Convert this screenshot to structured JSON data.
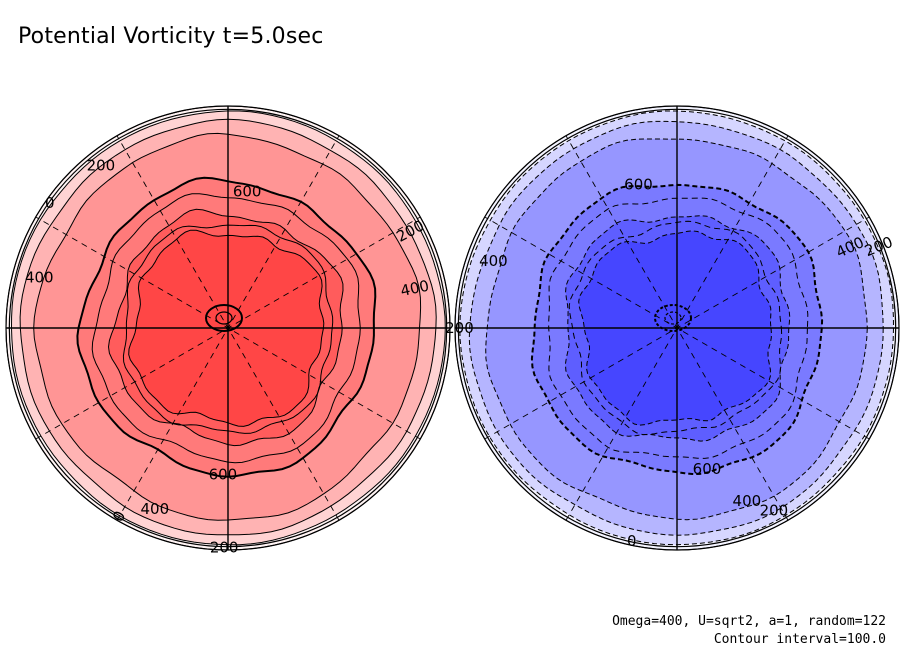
{
  "title": "Potential Vorticity t=5.0sec",
  "parameters": "Omega=400, U=sqrt2, a=1, random=122",
  "contour_interval_text": "Contour interval=100.0",
  "chart_data": [
    {
      "type": "contour",
      "hemisphere": "north",
      "projection": "polar",
      "contour_interval": 100,
      "value_range": [
        0,
        800
      ],
      "levels": [
        0,
        100,
        200,
        300,
        400,
        500,
        600,
        700,
        800
      ],
      "labeled_levels": [
        {
          "text": "200",
          "value": 200
        },
        {
          "text": "0",
          "value": 0
        },
        {
          "text": "400",
          "value": 400
        },
        {
          "text": "600",
          "value": 600
        },
        {
          "text": "200",
          "value": 200
        },
        {
          "text": "400",
          "value": 400
        },
        {
          "text": "600",
          "value": 600
        },
        {
          "text": "400",
          "value": 400
        },
        {
          "text": "0",
          "value": 0
        },
        {
          "text": "200",
          "value": 200
        }
      ],
      "fill_colors": [
        "#fff4f4",
        "#ffd3d3",
        "#ffb3b3",
        "#ff9595",
        "#ff7a7a",
        "#ff5c5c",
        "#ff4646"
      ],
      "contour_style": "solid"
    },
    {
      "type": "contour",
      "hemisphere": "south",
      "projection": "polar",
      "contour_interval": 100,
      "value_range": [
        -800,
        0
      ],
      "levels": [
        0,
        -100,
        -200,
        -300,
        -400,
        -500,
        -600,
        -700,
        -800
      ],
      "labeled_levels": [
        {
          "text": "600",
          "value": -600
        },
        {
          "text": "200",
          "value": -200
        },
        {
          "text": "400",
          "value": -400
        },
        {
          "text": "400",
          "value": -400
        },
        {
          "text": "200",
          "value": -200
        },
        {
          "text": "600",
          "value": -600
        },
        {
          "text": "400",
          "value": -400
        },
        {
          "text": "200",
          "value": -200
        },
        {
          "text": "0",
          "value": 0
        }
      ],
      "fill_colors": [
        "#f4f4ff",
        "#d6d6ff",
        "#b5b5ff",
        "#9696ff",
        "#7a7aff",
        "#5e5eff",
        "#4646ff"
      ],
      "contour_style": "dashed"
    }
  ]
}
